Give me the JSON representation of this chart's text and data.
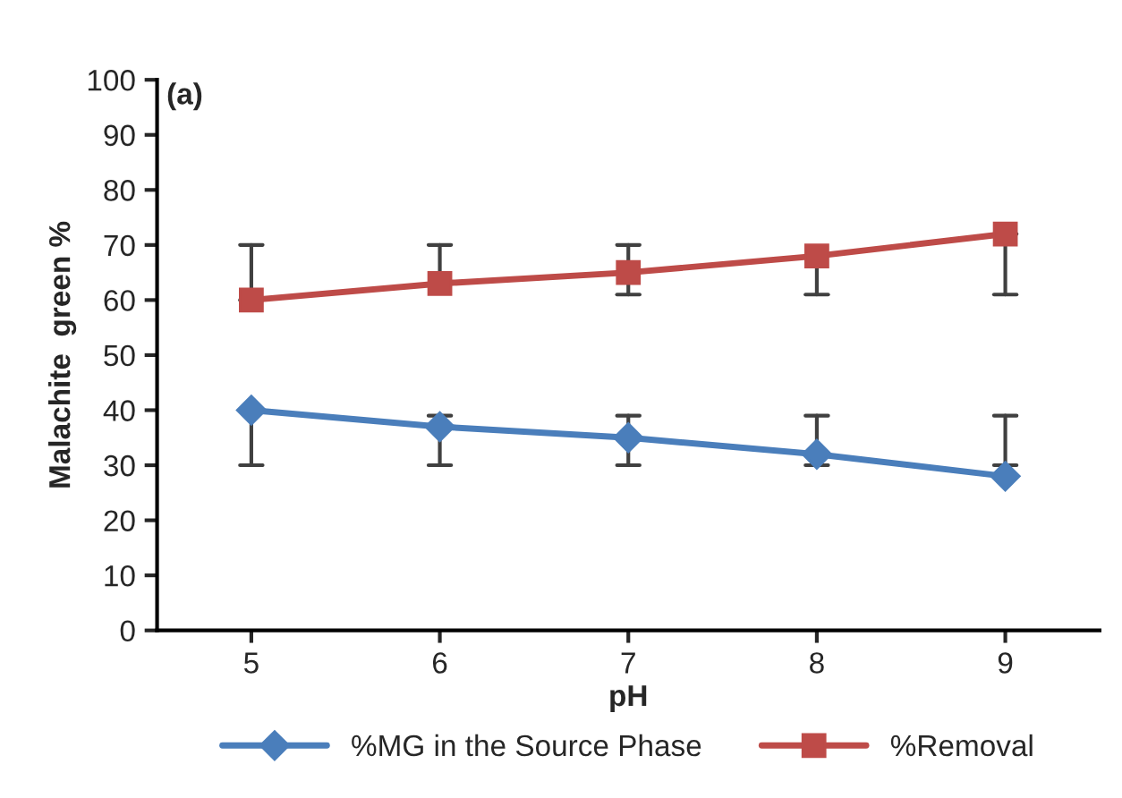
{
  "chart_data": {
    "type": "line",
    "xlabel": "pH",
    "ylabel": "Malachite  green %",
    "annotations": [
      "(a)"
    ],
    "x": [
      5,
      6,
      7,
      8,
      9
    ],
    "xlim": [
      4.5,
      9.5
    ],
    "xticks": [
      5,
      6,
      7,
      8,
      9
    ],
    "ylim": [
      0,
      100
    ],
    "yticks": [
      0,
      10,
      20,
      30,
      40,
      50,
      60,
      70,
      80,
      90,
      100
    ],
    "series": [
      {
        "name": "%MG in the Source Phase",
        "color": "#4a7ebb",
        "marker": "diamond",
        "values": [
          40,
          37,
          35,
          32,
          28
        ],
        "errors": [
          [
            30,
            40
          ],
          [
            30,
            39
          ],
          [
            30,
            39
          ],
          [
            30,
            39
          ],
          [
            30,
            39
          ]
        ]
      },
      {
        "name": "%Removal",
        "color": "#be4b48",
        "marker": "square",
        "values": [
          60,
          63,
          65,
          68,
          72
        ],
        "errors": [
          [
            60,
            70
          ],
          [
            63,
            70
          ],
          [
            61,
            70
          ],
          [
            61,
            68
          ],
          [
            61,
            72
          ]
        ]
      }
    ],
    "grid": false,
    "legend": "bottom"
  }
}
